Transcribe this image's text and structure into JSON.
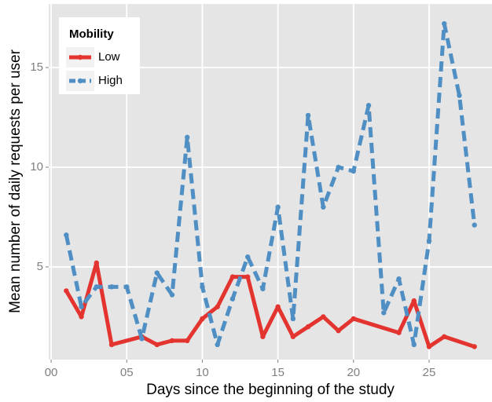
{
  "chart_data": {
    "type": "line",
    "xlabel": "Days since the beginning of the study",
    "ylabel": "Mean number of daily requests per user",
    "xlim": [
      -0.16,
      29.16
    ],
    "ylim": [
      0.35,
      18.19
    ],
    "xticks": [
      {
        "value": 0,
        "label": "00"
      },
      {
        "value": 5,
        "label": "05"
      },
      10,
      15,
      20,
      25
    ],
    "yticks": [
      5,
      10,
      15
    ],
    "grid": true,
    "legend": {
      "title": "Mobility",
      "position": "top-left"
    },
    "series": [
      {
        "name": "Low",
        "color": "#e3342f",
        "linestyle": "solid",
        "x": [
          1,
          2,
          3,
          4,
          6,
          7,
          8,
          9,
          10,
          11,
          12,
          13,
          14,
          15,
          16,
          17,
          18,
          19,
          20,
          23,
          24,
          25,
          26,
          28
        ],
        "values": [
          3.8,
          2.5,
          5.2,
          1.1,
          1.5,
          1.1,
          1.3,
          1.3,
          2.4,
          3.0,
          4.5,
          4.5,
          1.5,
          3.0,
          1.5,
          2.0,
          2.5,
          1.8,
          2.4,
          1.7,
          3.3,
          1.0,
          1.5,
          1.0
        ]
      },
      {
        "name": "High",
        "color": "#4f8fc4",
        "linestyle": "dashed",
        "x": [
          1,
          2,
          3,
          4,
          5,
          6,
          7,
          8,
          9,
          10,
          11,
          12,
          13,
          14,
          15,
          16,
          17,
          18,
          19,
          20,
          21,
          22,
          23,
          24,
          25,
          26,
          27,
          28
        ],
        "values": [
          6.6,
          3.0,
          4.0,
          4.0,
          4.0,
          1.4,
          4.7,
          3.6,
          11.5,
          4.0,
          1.1,
          3.4,
          5.5,
          3.9,
          8.0,
          2.4,
          12.6,
          8.0,
          10.0,
          9.8,
          13.1,
          2.7,
          4.4,
          1.1,
          6.3,
          17.2,
          13.6,
          7.1
        ]
      }
    ]
  }
}
